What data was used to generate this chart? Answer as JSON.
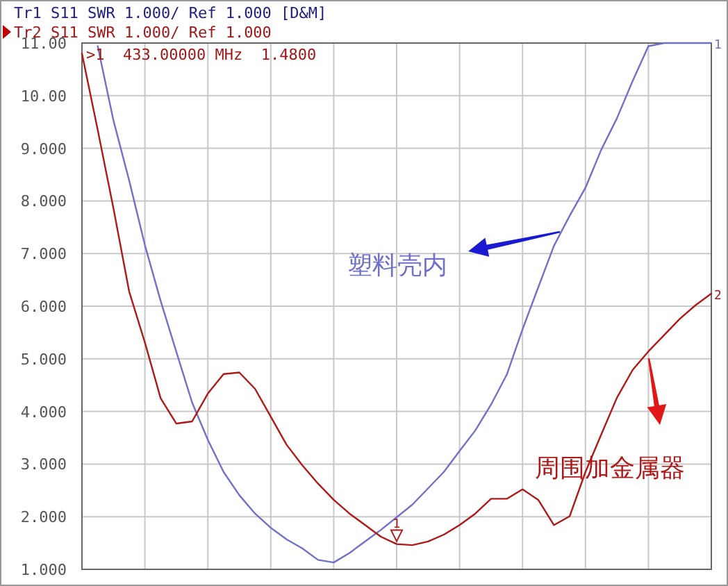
{
  "chart_data": {
    "type": "line",
    "categories": [
      null,
      null,
      null,
      null,
      null,
      null,
      null,
      null,
      null,
      null,
      null,
      null,
      null,
      null,
      null,
      null,
      null,
      null,
      null,
      null,
      null,
      null,
      null,
      null,
      null,
      null,
      null,
      null,
      null,
      null,
      null,
      null,
      null,
      null,
      null,
      null,
      null,
      null,
      null,
      null,
      null
    ],
    "series": [
      {
        "name": "塑料壳内",
        "color": "#7070c8",
        "values": [
          null,
          10.94,
          9.53,
          8.39,
          7.16,
          6.1,
          5.13,
          4.17,
          3.46,
          2.85,
          2.41,
          2.06,
          1.79,
          1.57,
          1.4,
          1.18,
          1.13,
          1.31,
          1.53,
          1.75,
          1.99,
          2.23,
          2.54,
          2.85,
          3.25,
          3.64,
          4.13,
          4.7,
          5.56,
          6.36,
          7.15,
          7.72,
          8.25,
          8.97,
          9.57,
          10.28,
          10.94,
          11,
          11,
          11,
          11
        ]
      },
      {
        "name": "周围加金属器",
        "color": "#b01818",
        "values": [
          10.8,
          9.35,
          7.86,
          6.28,
          5.31,
          4.25,
          3.77,
          3.81,
          4.34,
          4.71,
          4.74,
          4.43,
          3.9,
          3.37,
          2.98,
          2.63,
          2.32,
          2.06,
          1.84,
          1.62,
          1.48,
          1.46,
          1.53,
          1.66,
          1.84,
          2.06,
          2.34,
          2.34,
          2.52,
          2.32,
          1.84,
          2.01,
          2.85,
          3.56,
          4.26,
          4.79,
          5.14,
          5.45,
          5.76,
          6.02,
          6.24
        ]
      }
    ],
    "ylim": [
      1,
      11
    ],
    "yticks": [
      {
        "value": 1,
        "label": "1.000"
      },
      {
        "value": 2,
        "label": "2.000"
      },
      {
        "value": 3,
        "label": "3.000"
      },
      {
        "value": 4,
        "label": "4.000"
      },
      {
        "value": 5,
        "label": "5.000"
      },
      {
        "value": 6,
        "label": "6.000"
      },
      {
        "value": 7,
        "label": "7.000"
      },
      {
        "value": 8,
        "label": "8.000"
      },
      {
        "value": 9,
        "label": "9.000"
      },
      {
        "value": 10,
        "label": "10.00"
      },
      {
        "value": 11,
        "label": "11.00"
      }
    ],
    "grid": true,
    "marker": "none",
    "line_style": "solid",
    "annotations": [
      "Tr1 S11 SWR 1.000/ Ref 1.000 [D&M]",
      "Tr2 S11 SWR 1.000/ Ref 1.000",
      ">1  433.00000 MHz  1.4800",
      "1",
      "1",
      "2"
    ]
  }
}
